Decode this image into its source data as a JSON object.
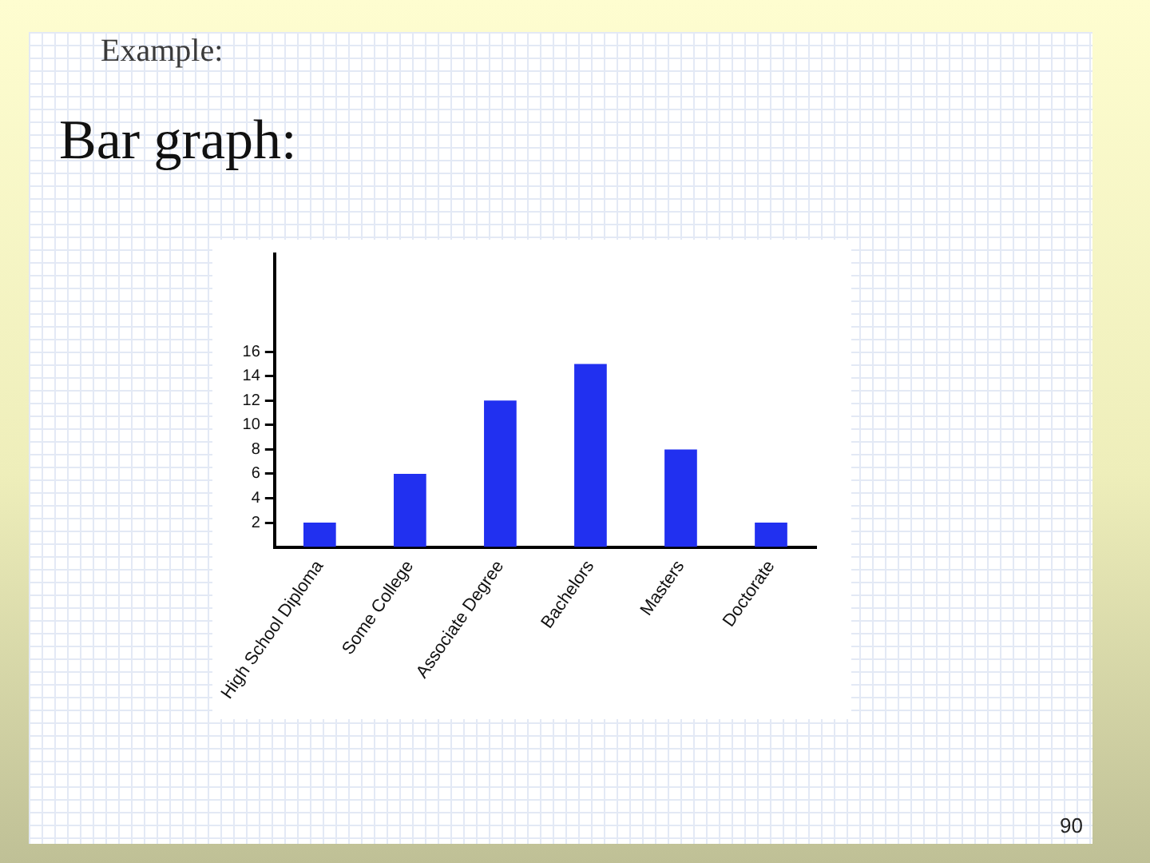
{
  "chart_data": {
    "type": "bar",
    "title": "Example:",
    "subtitle": "Bar graph:",
    "categories": [
      "High School Diploma",
      "Some College",
      "Associate Degree",
      "Bachelors",
      "Masters",
      "Doctorate"
    ],
    "values": [
      2,
      6,
      12,
      15,
      8,
      2
    ],
    "color": "#2130f0",
    "ylim": [
      0,
      24
    ],
    "yticks": [
      2,
      4,
      6,
      8,
      10,
      12,
      14,
      16
    ],
    "grid": false,
    "legend": false,
    "annotations": [
      "90"
    ]
  }
}
